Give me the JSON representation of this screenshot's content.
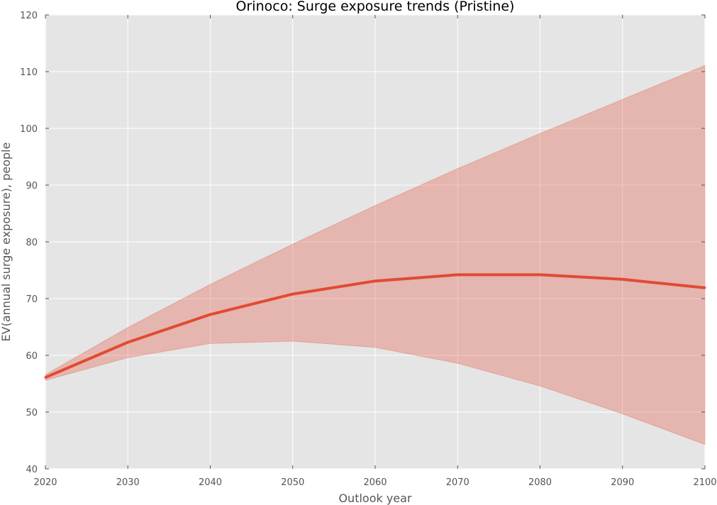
{
  "chart_data": {
    "type": "line",
    "title": "Orinoco: Surge exposure trends (Pristine)",
    "xlabel": "Outlook year",
    "ylabel": "EV(annual surge exposure), people",
    "xlim": [
      2020,
      2100
    ],
    "ylim": [
      40,
      120
    ],
    "x_ticks": [
      2020,
      2030,
      2040,
      2050,
      2060,
      2070,
      2080,
      2090,
      2100
    ],
    "y_ticks": [
      40,
      50,
      60,
      70,
      80,
      90,
      100,
      110,
      120
    ],
    "grid": true,
    "x": [
      2020,
      2030,
      2040,
      2050,
      2060,
      2070,
      2080,
      2090,
      2100
    ],
    "series": [
      {
        "values": [
          56.1,
          62.3,
          67.2,
          70.8,
          73.1,
          74.2,
          74.2,
          73.4,
          71.9
        ],
        "band_upper": [
          56.6,
          64.9,
          72.5,
          79.6,
          86.4,
          92.9,
          99.1,
          105.1,
          111.1
        ],
        "band_lower": [
          55.6,
          59.6,
          62.1,
          62.5,
          61.4,
          58.6,
          54.6,
          49.7,
          44.3
        ],
        "color": "#e24a33",
        "band_color": "#e24a33"
      }
    ]
  },
  "colors": {
    "plot_background": "#e5e5e5",
    "grid": "#ffffff",
    "line": "#e24a33"
  }
}
